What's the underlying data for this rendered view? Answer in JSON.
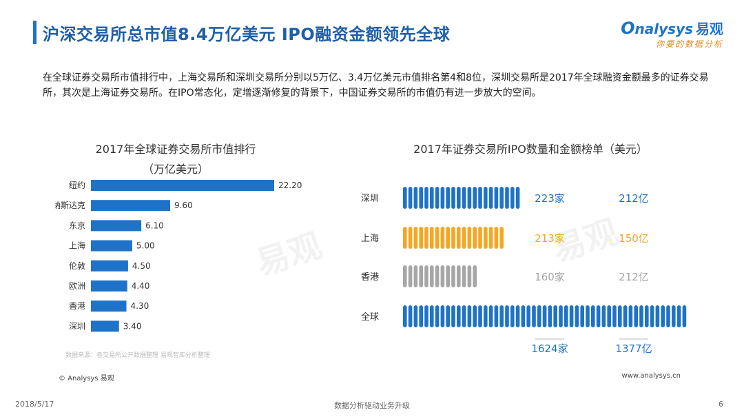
{
  "header": {
    "title": "沪深交易所总市值8.4万亿美元   IPO融资金额领先全球",
    "logo_text": "nalysys",
    "logo_cn": "易观",
    "logo_sub": "你要的数据分析"
  },
  "intro": "在全球证券交易所市值排行中，上海交易所和深圳交易所分别以5万亿、3.4万亿美元市值排名第4和8位，深圳交易所是2017年全球融资金额最多的证券交易所，其次是上海证券交易所。在IPO常态化，定增逐渐修复的背景下，中国证券交易所的市值仍有进一步放大的空间。",
  "left_title_1": "2017年全球证券交易所市值排行",
  "left_title_2": "（万亿美元）",
  "right_title": "2017年证券交易所IPO数量和金额榜单（美元）",
  "source_text": "数据来源：各交易所公开数据整理    易观智库分析整理",
  "copyright": "© Analysys 易观",
  "website": "www.analysys.cn",
  "footer": {
    "date": "2018/5/17",
    "center": "数据分析驱动业务升级",
    "page": "6"
  },
  "colors": {
    "accent": "#1e73c8",
    "shenzhen": "#1e73c8",
    "shanghai": "#f5a623",
    "hongkong": "#a6a6a6",
    "global": "#1e73c8"
  },
  "chart_data": [
    {
      "type": "bar",
      "orientation": "horizontal",
      "title": "2017年全球证券交易所市值排行（万亿美元）",
      "categories": [
        "纽约",
        "纳斯达克",
        "东京",
        "上海",
        "伦敦",
        "欧洲",
        "香港",
        "深圳"
      ],
      "values": [
        22.2,
        9.6,
        6.1,
        5.0,
        4.5,
        4.4,
        4.3,
        3.4
      ],
      "value_labels": [
        "22.20",
        "9.60",
        "6.10",
        "5.00",
        "4.50",
        "4.40",
        "4.30",
        "3.40"
      ],
      "xlim": [
        0,
        22.2
      ]
    },
    {
      "type": "table",
      "title": "2017年证券交易所IPO数量和金额榜单（美元）",
      "rows": [
        {
          "name": "深圳",
          "count": 223,
          "count_label": "223家",
          "amount_label": "212亿"
        },
        {
          "name": "上海",
          "count": 213,
          "count_label": "213家",
          "amount_label": "150亿"
        },
        {
          "name": "香港",
          "count": 160,
          "count_label": "160家",
          "amount_label": "212亿"
        },
        {
          "name": "全球",
          "count": 1624,
          "count_label": "1624家",
          "amount_label": "1377亿"
        }
      ]
    }
  ]
}
